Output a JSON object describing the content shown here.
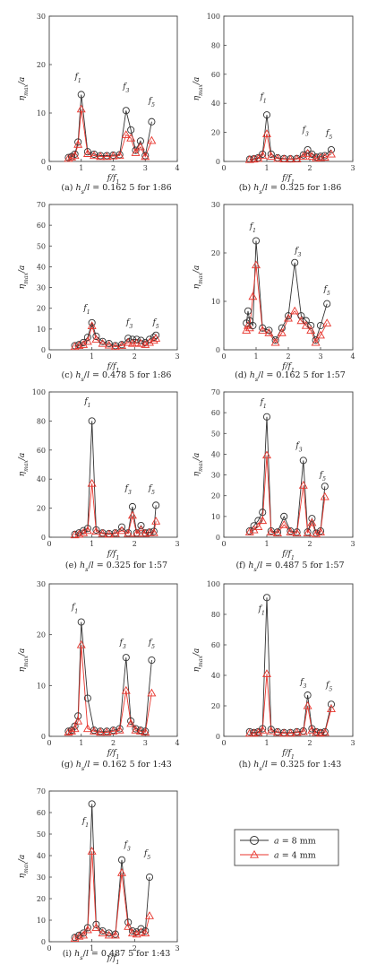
{
  "colors": {
    "a8": "#333333",
    "a4": "#e8352d",
    "axis": "#444444"
  },
  "legend": [
    {
      "label": "a = 8 mm",
      "color": "#333333",
      "marker": "circle"
    },
    {
      "label": "a = 4 mm",
      "color": "#e8352d",
      "marker": "triangle"
    }
  ],
  "chart_data": [
    {
      "type": "line",
      "caption": "(a) hs/l = 0.162 5 for 1:86",
      "xlabel": "f/f1",
      "ylabel": "ηmax/a",
      "xlim": [
        0,
        4
      ],
      "ylim": [
        0,
        30
      ],
      "xticks": [
        "0",
        "1",
        "2",
        "3",
        "4"
      ],
      "yticks": [
        "0",
        "10",
        "20",
        "30"
      ],
      "peaks": [
        {
          "label": "f1",
          "x": 0.9,
          "y": 17
        },
        {
          "label": "f3",
          "x": 2.4,
          "y": 15
        },
        {
          "label": "f5",
          "x": 3.2,
          "y": 12
        }
      ],
      "x": [
        0.6,
        0.7,
        0.8,
        0.9,
        1.0,
        1.2,
        1.4,
        1.6,
        1.8,
        2.0,
        2.2,
        2.4,
        2.55,
        2.7,
        2.85,
        3.0,
        3.2
      ],
      "series": [
        {
          "name": "a = 8 mm",
          "values": [
            0.8,
            1.0,
            1.5,
            4.0,
            13.8,
            2.0,
            1.5,
            1.2,
            1.2,
            1.3,
            1.4,
            10.5,
            6.5,
            2.3,
            4.2,
            1.2,
            8.2
          ]
        },
        {
          "name": "a = 4 mm",
          "values": [
            0.6,
            0.9,
            1.2,
            3.5,
            10.8,
            1.6,
            1.2,
            1.0,
            1.0,
            1.1,
            1.2,
            5.5,
            4.8,
            1.8,
            3.0,
            1.0,
            4.3
          ]
        }
      ]
    },
    {
      "type": "line",
      "caption": "(b) hs/l = 0.325 for 1:86",
      "xlabel": "f/f1",
      "ylabel": "ηmax/a",
      "xlim": [
        0,
        3
      ],
      "ylim": [
        0,
        100
      ],
      "xticks": [
        "0",
        "1",
        "2",
        "3"
      ],
      "yticks": [
        "0",
        "20",
        "40",
        "60",
        "80",
        "100"
      ],
      "peaks": [
        {
          "label": "f1",
          "x": 0.92,
          "y": 43
        },
        {
          "label": "f3",
          "x": 1.9,
          "y": 20
        },
        {
          "label": "f5",
          "x": 2.45,
          "y": 18
        }
      ],
      "x": [
        0.6,
        0.7,
        0.8,
        0.9,
        1.0,
        1.1,
        1.25,
        1.4,
        1.55,
        1.7,
        1.85,
        1.95,
        2.05,
        2.15,
        2.25,
        2.35,
        2.5
      ],
      "series": [
        {
          "name": "a = 8 mm",
          "values": [
            1.5,
            1.8,
            2.5,
            5.0,
            32.0,
            5.0,
            2.5,
            2.0,
            1.8,
            2.0,
            4.5,
            8.0,
            5.0,
            3.0,
            3.5,
            4.0,
            8.0
          ]
        },
        {
          "name": "a = 4 mm",
          "values": [
            1.2,
            1.5,
            2.0,
            4.0,
            19.0,
            3.5,
            2.0,
            1.6,
            1.5,
            1.6,
            3.5,
            5.5,
            3.5,
            2.2,
            2.5,
            2.8,
            5.0
          ]
        }
      ]
    },
    {
      "type": "line",
      "caption": "(c) hs/l = 0.478 5 for 1:86",
      "xlabel": "f/f1",
      "ylabel": "ηmax/a",
      "xlim": [
        0,
        3
      ],
      "ylim": [
        0,
        70
      ],
      "xticks": [
        "0",
        "1",
        "2",
        "3"
      ],
      "yticks": [
        "0",
        "10",
        "20",
        "30",
        "40",
        "50",
        "60",
        "70"
      ],
      "peaks": [
        {
          "label": "f1",
          "x": 0.88,
          "y": 19
        },
        {
          "label": "f3",
          "x": 1.88,
          "y": 12
        },
        {
          "label": "f5",
          "x": 2.5,
          "y": 12
        }
      ],
      "x": [
        0.6,
        0.7,
        0.8,
        0.9,
        1.0,
        1.1,
        1.25,
        1.4,
        1.55,
        1.7,
        1.85,
        1.95,
        2.05,
        2.15,
        2.25,
        2.35,
        2.45,
        2.5
      ],
      "series": [
        {
          "name": "a = 8 mm",
          "values": [
            2.0,
            2.5,
            3.5,
            6.0,
            13.0,
            6.5,
            4.0,
            3.0,
            2.0,
            2.5,
            5.5,
            5.0,
            5.0,
            4.5,
            3.5,
            5.0,
            6.0,
            7.0
          ]
        },
        {
          "name": "a = 4 mm",
          "values": [
            1.5,
            2.0,
            2.5,
            4.0,
            11.5,
            5.0,
            3.0,
            2.2,
            1.5,
            2.0,
            3.5,
            3.0,
            3.2,
            3.0,
            2.5,
            3.5,
            4.5,
            5.5
          ]
        }
      ]
    },
    {
      "type": "line",
      "caption": "(d) hs/l = 0.162 5 for 1:57",
      "xlabel": "f/f1",
      "ylabel": "ηmax/a",
      "xlim": [
        0,
        4
      ],
      "ylim": [
        0,
        30
      ],
      "xticks": [
        "0",
        "1",
        "2",
        "3",
        "4"
      ],
      "yticks": [
        "0",
        "10",
        "20",
        "30"
      ],
      "peaks": [
        {
          "label": "f1",
          "x": 0.9,
          "y": 25
        },
        {
          "label": "f3",
          "x": 2.3,
          "y": 20
        },
        {
          "label": "f5",
          "x": 3.2,
          "y": 12
        }
      ],
      "x": [
        0.7,
        0.75,
        0.8,
        0.9,
        1.0,
        1.2,
        1.4,
        1.6,
        1.8,
        2.0,
        2.2,
        2.4,
        2.55,
        2.7,
        2.85,
        3.0,
        3.2
      ],
      "series": [
        {
          "name": "a = 8 mm",
          "values": [
            5.5,
            8.0,
            6.0,
            5.0,
            22.5,
            4.5,
            4.0,
            2.0,
            4.5,
            7.0,
            18.0,
            7.0,
            6.0,
            5.0,
            2.0,
            5.0,
            9.5
          ]
        },
        {
          "name": "a = 4 mm",
          "values": [
            4.0,
            5.0,
            4.5,
            11.0,
            17.5,
            4.0,
            3.5,
            1.5,
            3.5,
            6.5,
            8.0,
            6.0,
            5.0,
            4.0,
            1.5,
            3.0,
            5.5
          ]
        }
      ]
    },
    {
      "type": "line",
      "caption": "(e) hs/l = 0.325 for 1:57",
      "xlabel": "f/f1",
      "ylabel": "ηmax/a",
      "xlim": [
        0,
        3
      ],
      "ylim": [
        0,
        100
      ],
      "xticks": [
        "0",
        "1",
        "2",
        "3"
      ],
      "yticks": [
        "0",
        "20",
        "40",
        "60",
        "80",
        "100"
      ],
      "peaks": [
        {
          "label": "f1",
          "x": 0.9,
          "y": 92
        },
        {
          "label": "f3",
          "x": 1.85,
          "y": 32
        },
        {
          "label": "f5",
          "x": 2.4,
          "y": 32
        }
      ],
      "x": [
        0.6,
        0.7,
        0.8,
        0.9,
        1.0,
        1.1,
        1.25,
        1.4,
        1.55,
        1.7,
        1.85,
        1.95,
        2.05,
        2.15,
        2.25,
        2.35,
        2.45,
        2.5
      ],
      "series": [
        {
          "name": "a = 8 mm",
          "values": [
            2.0,
            3.0,
            4.5,
            6.0,
            80.0,
            5.0,
            3.0,
            2.5,
            3.0,
            7.0,
            3.0,
            21.0,
            3.0,
            8.0,
            3.0,
            3.5,
            4.0,
            22.0
          ]
        },
        {
          "name": "a = 4 mm",
          "values": [
            1.5,
            2.0,
            3.0,
            4.5,
            37.0,
            4.0,
            2.5,
            2.0,
            2.5,
            4.5,
            2.5,
            15.0,
            2.5,
            5.0,
            2.5,
            3.0,
            3.0,
            11.0
          ]
        }
      ]
    },
    {
      "type": "line",
      "caption": "(f) hs/l = 0.487 5 for 1:57",
      "xlabel": "f/f1",
      "ylabel": "ηmax/a",
      "xlim": [
        0,
        3
      ],
      "ylim": [
        0,
        70
      ],
      "xticks": [
        "0",
        "1",
        "2",
        "3"
      ],
      "yticks": [
        "0",
        "10",
        "20",
        "30",
        "40",
        "50",
        "60",
        "70"
      ],
      "peaks": [
        {
          "label": "f1",
          "x": 0.92,
          "y": 64
        },
        {
          "label": "f3",
          "x": 1.75,
          "y": 43
        },
        {
          "label": "f5",
          "x": 2.3,
          "y": 29
        }
      ],
      "x": [
        0.6,
        0.7,
        0.8,
        0.9,
        1.0,
        1.1,
        1.25,
        1.4,
        1.55,
        1.7,
        1.85,
        1.95,
        2.05,
        2.15,
        2.25,
        2.35
      ],
      "series": [
        {
          "name": "a = 8 mm",
          "values": [
            3.0,
            5.5,
            8.0,
            12.0,
            58.0,
            3.0,
            2.5,
            10.0,
            3.0,
            2.5,
            37.0,
            2.5,
            9.0,
            2.0,
            3.0,
            24.5
          ]
        },
        {
          "name": "a = 4 mm",
          "values": [
            2.5,
            3.5,
            5.0,
            8.0,
            39.5,
            2.5,
            2.0,
            6.0,
            2.5,
            2.0,
            25.0,
            2.0,
            7.0,
            1.5,
            2.5,
            19.5
          ]
        }
      ]
    },
    {
      "type": "line",
      "caption": "(g) hs/l = 0.162 5 for 1:43",
      "xlabel": "f/f1",
      "ylabel": "ηmax/a",
      "xlim": [
        0,
        4
      ],
      "ylim": [
        0,
        30
      ],
      "xticks": [
        "0",
        "1",
        "2",
        "3",
        "4"
      ],
      "yticks": [
        "0",
        "10",
        "20",
        "30"
      ],
      "peaks": [
        {
          "label": "f1",
          "x": 0.8,
          "y": 25
        },
        {
          "label": "f3",
          "x": 2.3,
          "y": 18
        },
        {
          "label": "f5",
          "x": 3.2,
          "y": 18
        }
      ],
      "x": [
        0.6,
        0.7,
        0.8,
        0.9,
        1.0,
        1.2,
        1.4,
        1.6,
        1.8,
        2.0,
        2.2,
        2.4,
        2.55,
        2.7,
        2.85,
        3.0,
        3.2
      ],
      "series": [
        {
          "name": "a = 8 mm",
          "values": [
            1.0,
            1.2,
            2.0,
            4.0,
            22.5,
            7.5,
            1.2,
            1.0,
            1.0,
            1.2,
            1.5,
            15.5,
            3.0,
            1.5,
            1.2,
            1.0,
            15.0
          ]
        },
        {
          "name": "a = 4 mm",
          "values": [
            0.8,
            1.0,
            1.5,
            3.0,
            18.0,
            1.5,
            1.0,
            0.8,
            0.8,
            1.0,
            1.2,
            9.0,
            2.5,
            1.2,
            1.0,
            0.8,
            8.5
          ]
        }
      ]
    },
    {
      "type": "line",
      "caption": "(h) hs/l = 0.325 for 1:43",
      "xlabel": "f/f1",
      "ylabel": "ηmax/a",
      "xlim": [
        0,
        3
      ],
      "ylim": [
        0,
        100
      ],
      "xticks": [
        "0",
        "1",
        "2",
        "3"
      ],
      "yticks": [
        "0",
        "20",
        "40",
        "60",
        "80",
        "100"
      ],
      "peaks": [
        {
          "label": "f1",
          "x": 0.88,
          "y": 82
        },
        {
          "label": "f3",
          "x": 1.85,
          "y": 34
        },
        {
          "label": "f5",
          "x": 2.45,
          "y": 32
        }
      ],
      "x": [
        0.6,
        0.7,
        0.8,
        0.9,
        1.0,
        1.1,
        1.25,
        1.4,
        1.55,
        1.7,
        1.85,
        1.95,
        2.05,
        2.15,
        2.25,
        2.35,
        2.5
      ],
      "series": [
        {
          "name": "a = 8 mm",
          "values": [
            3.0,
            2.5,
            3.0,
            5.0,
            91.0,
            4.5,
            3.0,
            2.5,
            2.5,
            3.0,
            3.5,
            27.0,
            5.0,
            3.0,
            2.5,
            3.0,
            21.0
          ]
        },
        {
          "name": "a = 4 mm",
          "values": [
            2.0,
            2.0,
            2.5,
            4.0,
            41.0,
            3.5,
            2.5,
            2.0,
            2.0,
            2.5,
            3.0,
            20.0,
            4.0,
            2.5,
            2.0,
            2.5,
            18.0
          ]
        }
      ]
    },
    {
      "type": "line",
      "caption": "(i) hs/l = 0.487 5 for 1:43",
      "xlabel": "f/f1",
      "ylabel": "ηmax/a",
      "xlim": [
        0,
        3
      ],
      "ylim": [
        0,
        70
      ],
      "xticks": [
        "0",
        "1",
        "2",
        "3"
      ],
      "yticks": [
        "0",
        "10",
        "20",
        "30",
        "40",
        "50",
        "60",
        "70"
      ],
      "peaks": [
        {
          "label": "f1",
          "x": 0.85,
          "y": 55
        },
        {
          "label": "f3",
          "x": 1.83,
          "y": 44
        },
        {
          "label": "f5",
          "x": 2.3,
          "y": 40
        }
      ],
      "x": [
        0.6,
        0.7,
        0.8,
        0.9,
        1.0,
        1.1,
        1.25,
        1.4,
        1.55,
        1.7,
        1.85,
        1.95,
        2.05,
        2.15,
        2.25,
        2.35
      ],
      "series": [
        {
          "name": "a = 8 mm",
          "values": [
            2.0,
            3.0,
            4.0,
            6.5,
            64.0,
            8.0,
            5.0,
            4.0,
            3.5,
            38.0,
            9.0,
            5.0,
            4.5,
            6.0,
            5.0,
            30.0
          ]
        },
        {
          "name": "a = 4 mm",
          "values": [
            1.5,
            2.5,
            3.0,
            5.5,
            42.0,
            6.5,
            4.0,
            3.0,
            3.0,
            32.0,
            7.0,
            4.0,
            3.5,
            4.5,
            4.0,
            12.0
          ]
        }
      ]
    }
  ]
}
